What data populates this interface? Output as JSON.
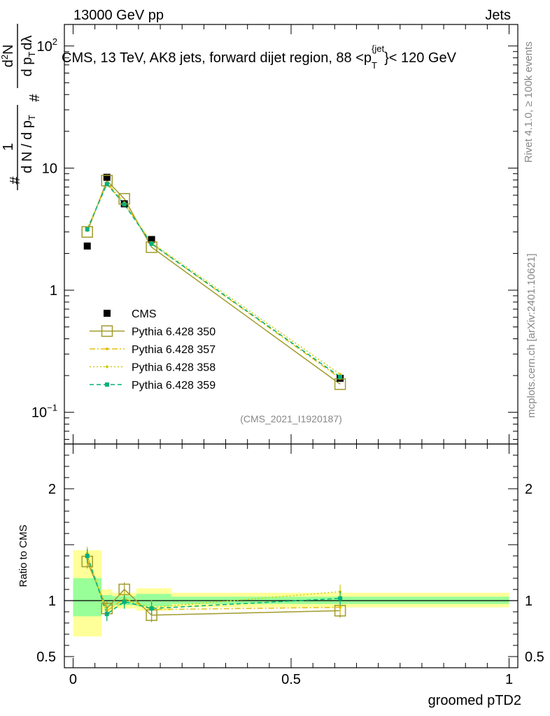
{
  "header": {
    "energy_label": "13000 GeV pp",
    "category_label": "Jets",
    "side_rivet": "Rivet 4.1.0, ≥ 100k events",
    "side_mcplots": "mcplots.cern.ch [arXiv:2401.10621]",
    "analysis_id": "(CMS_2021_I1920187)"
  },
  "chart_data": [
    {
      "type": "scatter",
      "panel": "main",
      "title": "CMS, 13 TeV, AK8 jets, forward dijet region, 88 <p_T^{jet}< 120 GeV",
      "title_parts": {
        "main": "CMS, 13 TeV, AK8 jets, forward dijet region, 88 <p",
        "sub": "T",
        "sup": "{jet",
        "tail": "}< 120 GeV"
      },
      "ylabel": "1/dN/dpT dN/dpT dλ",
      "ylabel_parts": {
        "hash": "#",
        "one": "1",
        "dn": "d N / d p",
        "t": "T",
        "d2n": "d",
        "two": "2",
        "n": "N",
        "dp": "d p",
        "t2": "T",
        "dl": "dλ"
      },
      "yscale": "log",
      "xlim": [
        -0.02,
        1.02
      ],
      "ylim": [
        0.055,
        150
      ],
      "y_ticks": [
        {
          "value": 0.1,
          "base": "10",
          "exp": "−1"
        },
        {
          "value": 1,
          "label": "1"
        },
        {
          "value": 10,
          "label": "10"
        },
        {
          "value": 100,
          "base": "10",
          "exp": "2"
        }
      ],
      "x": [
        0.0325,
        0.0775,
        0.1175,
        0.18,
        0.6125
      ],
      "series": [
        {
          "name": "CMS",
          "color": "#000000",
          "values": [
            2.3,
            8.4,
            5.1,
            2.6,
            0.19
          ]
        },
        {
          "name": "Pythia 6.428 350",
          "color": "#a09a2a",
          "values": [
            3.0,
            7.9,
            5.6,
            2.25,
            0.17
          ]
        },
        {
          "name": "Pythia 6.428 357",
          "color": "#e2c010",
          "values": [
            3.1,
            7.6,
            5.2,
            2.4,
            0.19
          ]
        },
        {
          "name": "Pythia 6.428 358",
          "color": "#cccc10",
          "values": [
            3.2,
            7.4,
            5.1,
            2.45,
            0.205
          ]
        },
        {
          "name": "Pythia 6.428 359",
          "color": "#00b07a",
          "values": [
            3.15,
            7.4,
            5.05,
            2.4,
            0.195
          ]
        }
      ],
      "legend_position": "middle-left"
    },
    {
      "type": "scatter",
      "panel": "ratio",
      "ylabel": "Ratio to CMS",
      "xlabel": "groomed pTD2",
      "xlim": [
        -0.02,
        1.02
      ],
      "ylim": [
        0.4,
        2.4
      ],
      "x_ticks": [
        0,
        0.5,
        1
      ],
      "x_tick_labels": [
        "0",
        "0.5",
        "1"
      ],
      "y_ticks": [
        0.5,
        1,
        2
      ],
      "y_tick_labels": [
        "0.5",
        "1",
        "2"
      ],
      "x": [
        0.0325,
        0.0775,
        0.1175,
        0.18,
        0.6125
      ],
      "band_edges": [
        0,
        0.065,
        0.09,
        0.145,
        0.225,
        1.0
      ],
      "band_yellow": [
        [
          0.68,
          1.45
        ],
        [
          0.9,
          1.1
        ],
        [
          0.93,
          1.07
        ],
        [
          0.91,
          1.11
        ],
        [
          0.94,
          1.07
        ]
      ],
      "band_green": [
        [
          0.86,
          1.2
        ],
        [
          0.95,
          1.05
        ],
        [
          0.96,
          1.04
        ],
        [
          0.95,
          1.06
        ],
        [
          0.97,
          1.035
        ]
      ],
      "series": [
        {
          "name": "Pythia 6.428 350",
          "color": "#a09a2a",
          "values": [
            1.35,
            0.93,
            1.1,
            0.87,
            0.91
          ]
        },
        {
          "name": "Pythia 6.428 357",
          "color": "#e2c010",
          "values": [
            1.38,
            0.91,
            1.02,
            0.92,
            0.94
          ]
        },
        {
          "name": "Pythia 6.428 358",
          "color": "#cccc10",
          "values": [
            1.42,
            0.88,
            1.0,
            0.94,
            1.08
          ]
        },
        {
          "name": "Pythia 6.428 359",
          "color": "#00b07a",
          "values": [
            1.4,
            0.88,
            0.99,
            0.93,
            1.02
          ]
        }
      ]
    }
  ]
}
